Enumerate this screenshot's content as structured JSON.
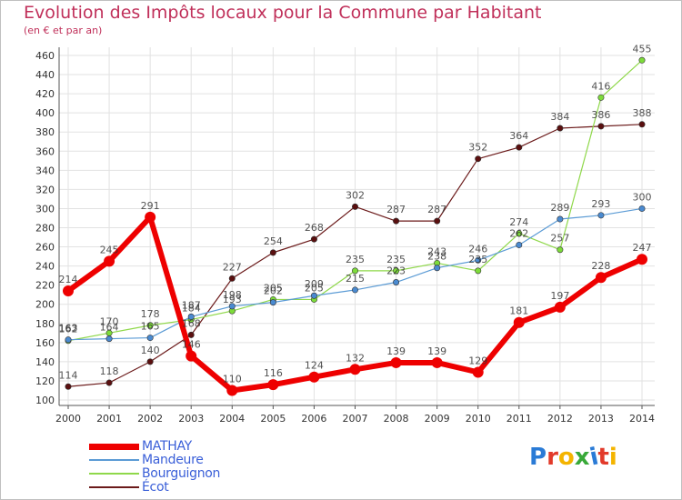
{
  "title": "Evolution des Impôts locaux pour la Commune par Habitant",
  "subtitle": "(en € et par an)",
  "logo": {
    "text": "Proxiti",
    "colors": [
      "#2a7bd6",
      "#e23a2a",
      "#f4b400",
      "#39a939",
      "#2a7bd6",
      "#e23a2a",
      "#f4b400"
    ]
  },
  "chart_data": {
    "type": "line",
    "title": "Evolution des Impôts locaux pour la Commune par Habitant",
    "subtitle": "(en € et par an)",
    "xlabel": "",
    "ylabel": "",
    "x": [
      "2000",
      "2001",
      "2002",
      "2003",
      "2004",
      "2005",
      "2006",
      "2007",
      "2008",
      "2009",
      "2010",
      "2011",
      "2012",
      "2013",
      "2014"
    ],
    "ylim": [
      100,
      460
    ],
    "yticks": [
      100,
      120,
      140,
      160,
      180,
      200,
      220,
      240,
      260,
      280,
      300,
      320,
      340,
      360,
      380,
      400,
      420,
      440,
      460
    ],
    "grid": true,
    "legend": "bottom-left",
    "series": [
      {
        "name": "Ecot",
        "color": "#6b1a1a",
        "point_color": "#5a0f0f",
        "width": 1.2,
        "marker": 3.2,
        "value_color": "#333333",
        "values": [
          114,
          118,
          140,
          168,
          227,
          254,
          268,
          302,
          287,
          287,
          352,
          364,
          384,
          386,
          388
        ]
      },
      {
        "name": "Bourguignon",
        "color": "#8fd84a",
        "point_color": "#7ddc3a",
        "width": 1.2,
        "marker": 3.2,
        "value_color": "#333333",
        "values": [
          162,
          170,
          178,
          184,
          193,
          205,
          205,
          235,
          235,
          243,
          235,
          274,
          257,
          416,
          455
        ]
      },
      {
        "name": "Mandeure",
        "color": "#5b9bd5",
        "point_color": "#4a8ad0",
        "width": 1.2,
        "marker": 3.2,
        "value_color": "#333333",
        "values": [
          163,
          164,
          165,
          187,
          198,
          202,
          209,
          215,
          223,
          238,
          246,
          262,
          289,
          293,
          300
        ]
      },
      {
        "name": "MATHAY",
        "color": "#ee0000",
        "point_color": "#ee0000",
        "width": 6,
        "marker": 6,
        "value_color": "#333333",
        "values": [
          214,
          245,
          291,
          146,
          110,
          116,
          124,
          132,
          139,
          139,
          129,
          181,
          197,
          228,
          247
        ]
      }
    ],
    "legend_entries": [
      {
        "label": "MATHAY",
        "color": "#ee0000",
        "width": 7
      },
      {
        "label": "Mandeure",
        "color": "#5b9bd5",
        "width": 2
      },
      {
        "label": "Bourguignon",
        "color": "#8fd84a",
        "width": 2
      },
      {
        "label": "Écot",
        "color": "#6b1a1a",
        "width": 2
      }
    ]
  }
}
